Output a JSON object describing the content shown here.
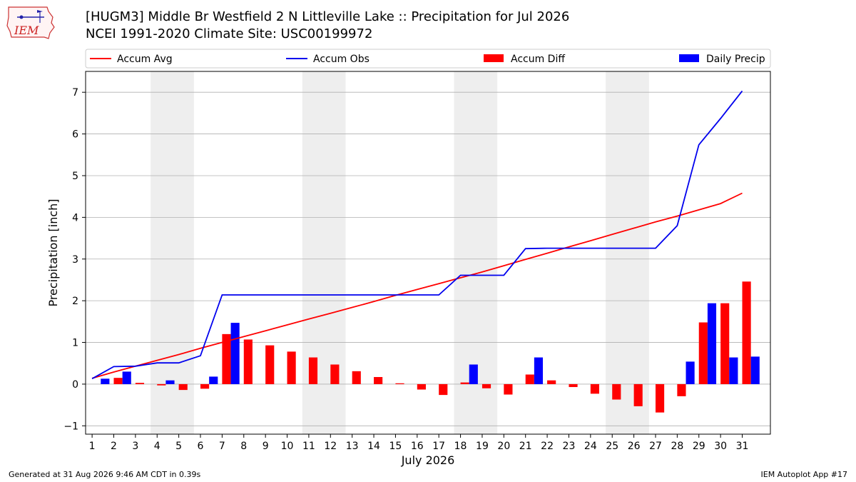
{
  "header": {
    "title_line1": "[HUGM3] Middle Br Westfield 2 N Littleville Lake :: Precipitation for Jul 2026",
    "title_line2": "NCEI 1991-2020 Climate Site: USC00199972",
    "logo_text": "IEM"
  },
  "footer": {
    "left": "Generated at 31 Aug 2026 9:46 AM CDT in 0.39s",
    "right": "IEM Autoplot App #17"
  },
  "colors": {
    "accum_avg": "#ff0000",
    "accum_obs": "#0000ee",
    "accum_diff": "#ff0000",
    "daily_precip": "#0000ff",
    "weekend_shade": "#eeeeee",
    "grid": "#b0b0b0"
  },
  "chart_data": {
    "type": "bar",
    "xlabel": "July 2026",
    "ylabel": "Precipitation [inch]",
    "ylim": [
      -1.2,
      7.5
    ],
    "yticks": [
      -1,
      0,
      1,
      2,
      3,
      4,
      5,
      6,
      7
    ],
    "grid": "horizontal",
    "legend_position": "top",
    "categories": [
      "1",
      "2",
      "3",
      "4",
      "5",
      "6",
      "7",
      "8",
      "9",
      "10",
      "11",
      "12",
      "13",
      "14",
      "15",
      "16",
      "17",
      "18",
      "19",
      "20",
      "21",
      "22",
      "23",
      "24",
      "25",
      "26",
      "27",
      "28",
      "29",
      "30",
      "31"
    ],
    "shaded_days": [
      [
        4,
        5
      ],
      [
        11,
        12
      ],
      [
        18,
        19
      ],
      [
        25,
        26
      ]
    ],
    "series": [
      {
        "name": "Accum Avg",
        "kind": "line",
        "values": [
          0.14,
          0.29,
          0.43,
          0.57,
          0.71,
          0.86,
          1.0,
          1.14,
          1.28,
          1.42,
          1.56,
          1.7,
          1.84,
          1.98,
          2.13,
          2.27,
          2.41,
          2.55,
          2.69,
          2.84,
          2.99,
          3.14,
          3.29,
          3.44,
          3.59,
          3.74,
          3.89,
          4.03,
          4.18,
          4.33,
          4.58
        ]
      },
      {
        "name": "Accum Obs",
        "kind": "line",
        "values": [
          0.13,
          0.42,
          0.43,
          0.51,
          0.51,
          0.68,
          2.14,
          2.14,
          2.14,
          2.14,
          2.14,
          2.14,
          2.14,
          2.14,
          2.14,
          2.14,
          2.14,
          2.61,
          2.61,
          2.61,
          3.25,
          3.26,
          3.26,
          3.26,
          3.26,
          3.26,
          3.26,
          3.8,
          5.74,
          6.37,
          7.03
        ]
      },
      {
        "name": "Accum Diff",
        "kind": "bar",
        "values": [
          0.0,
          0.15,
          0.03,
          -0.03,
          -0.14,
          -0.11,
          1.2,
          1.07,
          0.93,
          0.78,
          0.64,
          0.47,
          0.31,
          0.17,
          0.02,
          -0.13,
          -0.26,
          0.04,
          -0.1,
          -0.25,
          0.23,
          0.09,
          -0.07,
          -0.23,
          -0.37,
          -0.53,
          -0.68,
          -0.29,
          1.48,
          1.94,
          2.46
        ]
      },
      {
        "name": "Daily Precip",
        "kind": "bar",
        "values": [
          0.13,
          0.3,
          0.0,
          0.09,
          0.0,
          0.18,
          1.47,
          0.0,
          0.0,
          0.0,
          0.0,
          0.0,
          0.0,
          0.0,
          0.0,
          0.0,
          0.0,
          0.47,
          0.0,
          0.0,
          0.64,
          0.0,
          0.0,
          0.0,
          0.0,
          0.0,
          0.0,
          0.54,
          1.94,
          0.64,
          0.66
        ]
      }
    ]
  }
}
